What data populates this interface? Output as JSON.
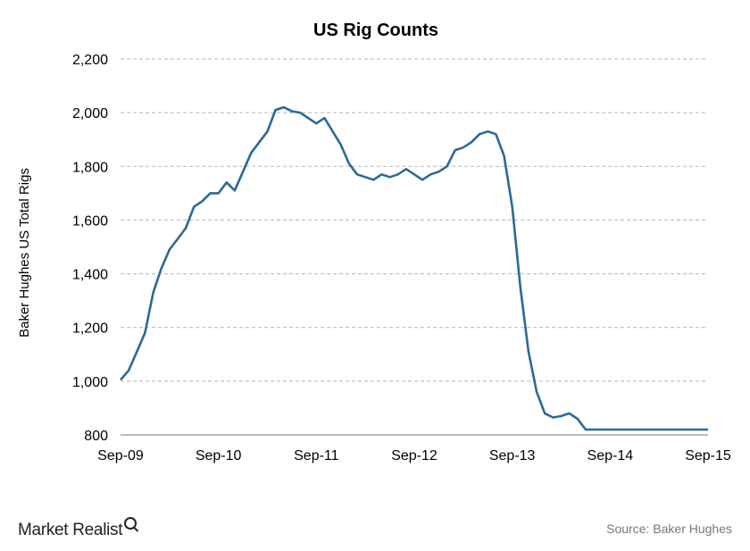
{
  "chart_data": {
    "type": "line",
    "title": "US Rig Counts",
    "ylabel": "Baker Hughes US Total Rigs",
    "xlabel": "",
    "x_tick_labels": [
      "Sep-09",
      "Sep-10",
      "Sep-11",
      "Sep-12",
      "Sep-13",
      "Sep-14",
      "Sep-15"
    ],
    "y_tick_labels": [
      "800",
      "1,000",
      "1,200",
      "1,400",
      "1,600",
      "1,800",
      "2,000",
      "2,200"
    ],
    "ylim": [
      800,
      2200
    ],
    "y_ticks": [
      800,
      1000,
      1200,
      1400,
      1600,
      1800,
      2000,
      2200
    ],
    "grid": "horizontal dashed",
    "legend": "none",
    "line_color": "#2a6a96",
    "series": [
      {
        "x": [
          "Sep-09",
          "Oct-09",
          "Nov-09",
          "Dec-09",
          "Jan-10",
          "Feb-10",
          "Mar-10",
          "Apr-10",
          "May-10",
          "Jun-10",
          "Jul-10",
          "Aug-10",
          "Sep-10",
          "Oct-10",
          "Nov-10",
          "Dec-10",
          "Jan-11",
          "Feb-11",
          "Mar-11",
          "Apr-11",
          "May-11",
          "Jun-11",
          "Jul-11",
          "Aug-11",
          "Sep-11",
          "Oct-11",
          "Nov-11",
          "Dec-11",
          "Jan-12",
          "Feb-12",
          "Mar-12",
          "Apr-12",
          "May-12",
          "Jun-12",
          "Jul-12",
          "Aug-12",
          "Sep-12",
          "Oct-12",
          "Nov-12",
          "Dec-12",
          "Jan-13",
          "Feb-13",
          "Mar-13",
          "Apr-13",
          "May-13",
          "Jun-13",
          "Jul-13",
          "Aug-13",
          "Sep-13",
          "Oct-13",
          "Nov-13",
          "Dec-13",
          "Jan-14",
          "Feb-14",
          "Mar-14",
          "Apr-14",
          "May-14",
          "Jun-14",
          "Jul-14",
          "Aug-14",
          "Sep-14",
          "Oct-14",
          "Nov-14",
          "Dec-14",
          "Jan-15",
          "Feb-15",
          "Mar-15",
          "Apr-15",
          "May-15",
          "Jun-15",
          "Jul-15",
          "Aug-15",
          "Sep-15"
        ],
        "values": [
          1005,
          1040,
          1110,
          1180,
          1330,
          1420,
          1490,
          1530,
          1570,
          1650,
          1670,
          1700,
          1700,
          1740,
          1710,
          1780,
          1850,
          1890,
          1930,
          2010,
          2020,
          2005,
          2000,
          1980,
          1960,
          1980,
          1930,
          1880,
          1810,
          1770,
          1760,
          1750,
          1770,
          1760,
          1770,
          1790,
          1770,
          1750,
          1770,
          1780,
          1800,
          1860,
          1870,
          1890,
          1920,
          1930,
          1920,
          1840,
          1650,
          1350,
          1110,
          960,
          880,
          865,
          870,
          880,
          860,
          820,
          820,
          820,
          820,
          820,
          820,
          820,
          820,
          820,
          820,
          820,
          820,
          820,
          820,
          820,
          820
        ]
      }
    ]
  },
  "footer": {
    "logo_text": "Market Realist",
    "source": "Source: Baker Hughes"
  }
}
